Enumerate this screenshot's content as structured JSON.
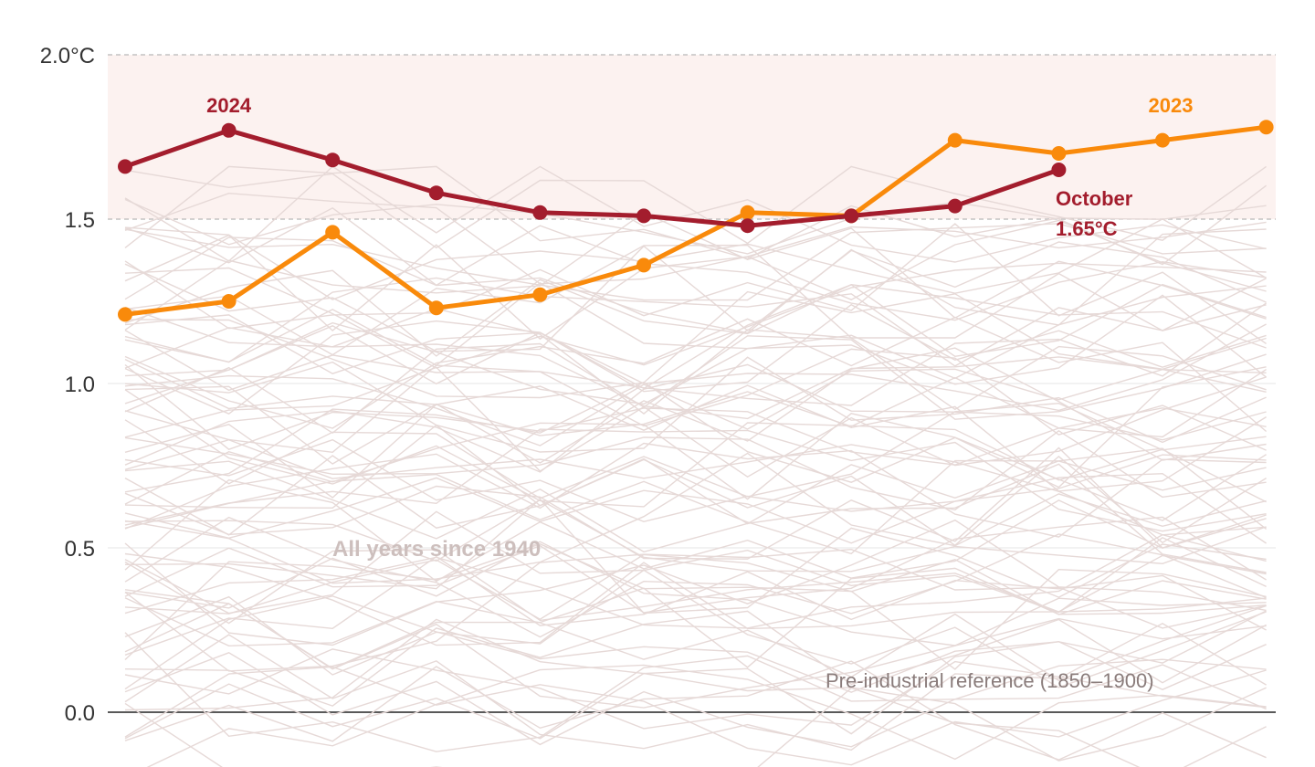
{
  "chart_data": {
    "type": "line",
    "y_unit": "°C",
    "ylim": [
      0,
      2.0
    ],
    "y_ticks": [
      {
        "value": 2.0,
        "label": "2.0°C"
      },
      {
        "value": 1.5,
        "label": "1.5"
      },
      {
        "value": 1.0,
        "label": "1.0"
      },
      {
        "value": 0.5,
        "label": "0.5"
      },
      {
        "value": 0.0,
        "label": "0.0"
      }
    ],
    "x_points": 12,
    "highlight_band": [
      1.5,
      2.0
    ],
    "reference_lines": [
      1.5,
      2.0
    ],
    "series": [
      {
        "name": "2024",
        "color": "#a31d2d",
        "values": [
          1.66,
          1.77,
          1.68,
          1.58,
          1.52,
          1.51,
          1.48,
          1.51,
          1.54,
          1.65
        ]
      },
      {
        "name": "2023",
        "color": "#f98a0b",
        "values": [
          1.21,
          1.25,
          1.46,
          1.23,
          1.27,
          1.36,
          1.52,
          1.51,
          1.74,
          1.7,
          1.74,
          1.78
        ]
      }
    ],
    "background_series_color": "#e6d9d7",
    "annotations": {
      "october_month": "October",
      "october_value": "1.65°C",
      "background_label": "All years since 1940",
      "baseline_label": "Pre-industrial reference (1850–1900)"
    },
    "grid": true
  }
}
